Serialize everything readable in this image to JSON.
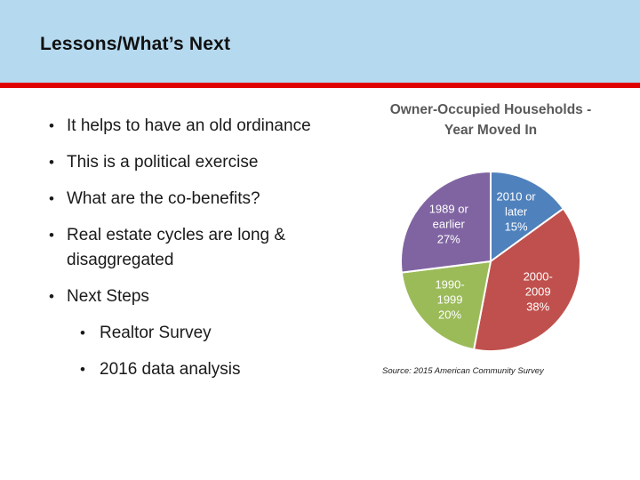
{
  "slide": {
    "title": "Lessons/What’s Next",
    "colors": {
      "header_bg": "#B5D9EE",
      "divider_red": "#DF0000",
      "title_text": "#111111",
      "body_text": "#1a1a1a",
      "chart_title_gray": "#595959",
      "pie_label_text": "#ffffff"
    }
  },
  "bullets": {
    "items": [
      {
        "level": 1,
        "text": "It helps to have an old ordinance"
      },
      {
        "level": 1,
        "text": "This is a political exercise"
      },
      {
        "level": 1,
        "text": "What are the co-benefits?"
      },
      {
        "level": 1,
        "text": "Real estate cycles are long & disaggregated"
      },
      {
        "level": 1,
        "text": "Next Steps"
      },
      {
        "level": 2,
        "text": "Realtor Survey"
      },
      {
        "level": 2,
        "text": "2016 data analysis"
      }
    ]
  },
  "chart_data": {
    "type": "pie",
    "title": "Owner-Occupied Households - Year Moved In",
    "source_note": "Source: 2015 American Community Survey",
    "legend_position": "none",
    "labels_inside": true,
    "start_angle_deg": 0,
    "direction": "clockwise",
    "slices": [
      {
        "label": "2010 or later",
        "value_pct": 15,
        "color": "#4F81BD",
        "label_lines": [
          "2010 or",
          "later",
          "15%"
        ]
      },
      {
        "label": "2000-2009",
        "value_pct": 38,
        "color": "#C0504D",
        "label_lines": [
          "2000-",
          "2009",
          "38%"
        ]
      },
      {
        "label": "1990-1999",
        "value_pct": 20,
        "color": "#9BBB59",
        "label_lines": [
          "1990-",
          "1999",
          "20%"
        ]
      },
      {
        "label": "1989 or earlier",
        "value_pct": 27,
        "color": "#8064A2",
        "label_lines": [
          "1989 or",
          "earlier",
          "27%"
        ]
      }
    ]
  }
}
